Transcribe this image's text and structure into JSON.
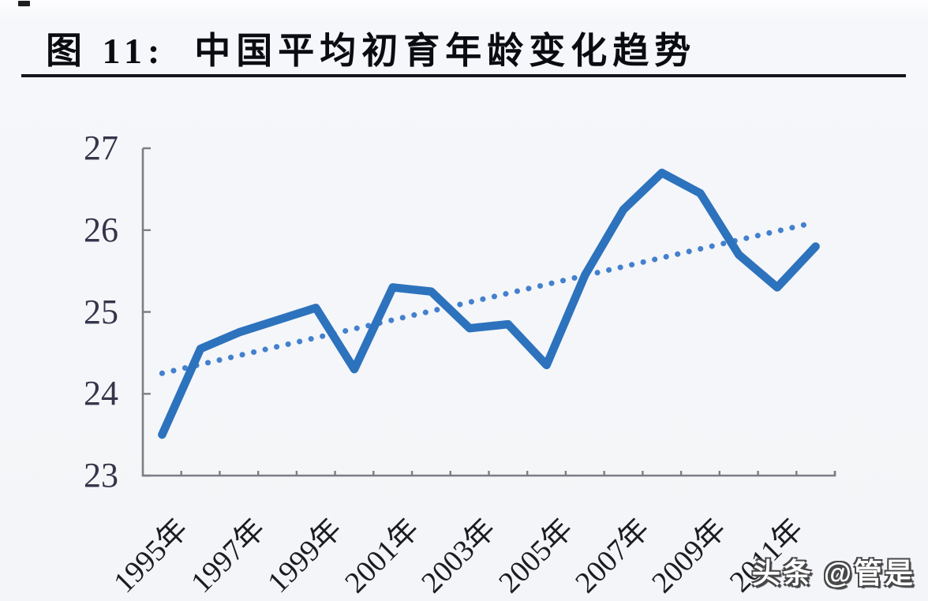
{
  "figure": {
    "title": "图 11:  中国平均初育年龄变化趋势",
    "watermark": "头条 @管是"
  },
  "chart_data": {
    "type": "line",
    "title": "图 11: 中国平均初育年龄变化趋势",
    "years": [
      1995,
      1996,
      1997,
      1998,
      1999,
      2000,
      2001,
      2002,
      2003,
      2004,
      2005,
      2006,
      2007,
      2008,
      2009,
      2010,
      2011,
      2012
    ],
    "x_tick_labels": [
      "1995年",
      "1997年",
      "1999年",
      "2001年",
      "2003年",
      "2005年",
      "2007年",
      "2009年",
      "2011年"
    ],
    "yticks": [
      23,
      24,
      25,
      26,
      27
    ],
    "ylim": [
      23,
      27
    ],
    "xlabel": "",
    "ylabel": "",
    "grid": false,
    "legend_position": "none",
    "series": [
      {
        "name": "data-line",
        "style": "solid",
        "color": "#2d72bd",
        "values": [
          23.5,
          24.55,
          24.75,
          24.9,
          25.05,
          24.3,
          25.3,
          25.25,
          24.8,
          24.85,
          24.35,
          25.45,
          26.25,
          26.7,
          26.45,
          25.7,
          25.3,
          25.8
        ]
      },
      {
        "name": "trend-line",
        "style": "dotted",
        "color": "#4480cd",
        "values": [
          24.25,
          24.36,
          24.47,
          24.58,
          24.69,
          24.79,
          24.9,
          25.01,
          25.12,
          25.23,
          25.34,
          25.45,
          25.56,
          25.66,
          25.77,
          25.88,
          25.99,
          26.1
        ]
      }
    ],
    "axis_color": "#7d7d84"
  }
}
